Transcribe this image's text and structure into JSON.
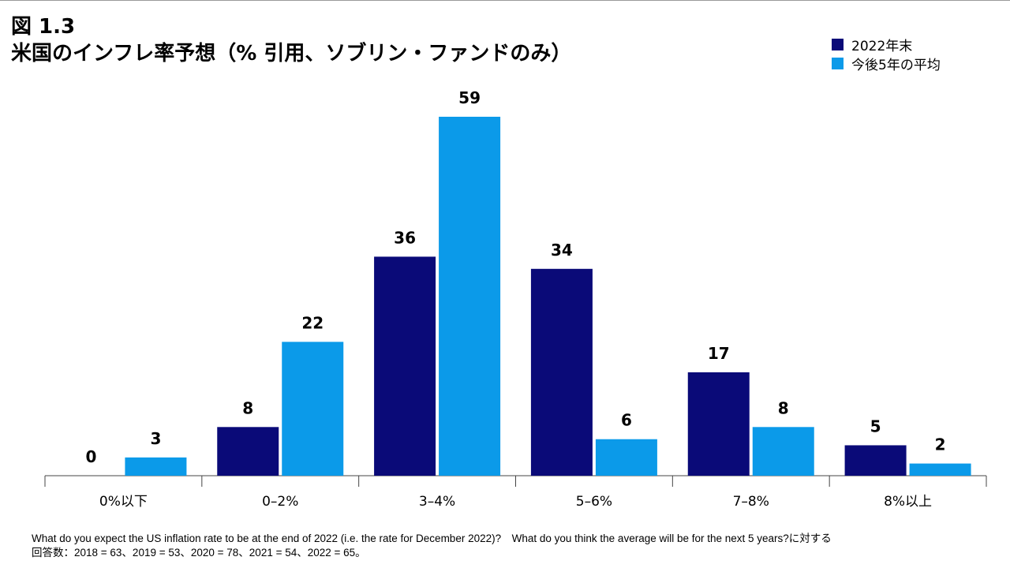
{
  "figure": {
    "number": "図 1.3",
    "title": "米国のインフレ率予想（% 引用、ソブリン・ファンドのみ）"
  },
  "legend": [
    {
      "label": "2022年末",
      "color": "#0a0a78"
    },
    {
      "label": "今後5年の平均",
      "color": "#0b9ae9"
    }
  ],
  "chart_data": {
    "type": "bar",
    "title": "米国のインフレ率予想（% 引用、ソブリン・ファンドのみ）",
    "categories": [
      "0%以下",
      "0–2%",
      "3–4%",
      "5–6%",
      "7–8%",
      "8%以上"
    ],
    "series": [
      {
        "name": "2022年末",
        "color": "#0a0a78",
        "values": [
          0,
          8,
          36,
          34,
          17,
          5
        ]
      },
      {
        "name": "今後5年の平均",
        "color": "#0b9ae9",
        "values": [
          3,
          22,
          59,
          6,
          8,
          2
        ]
      }
    ],
    "ylim": [
      0,
      59
    ],
    "grid": false,
    "legend_position": "top-right",
    "data_labels": true
  },
  "footnote": {
    "line1": "What do you expect the US inflation rate to be at the end of 2022 (i.e. the rate for December 2022)?　What do you think the average will be for the next 5 years?に対する",
    "line2": "回答数：2018 = 63、2019 = 53、2020 = 78、2021 = 54、2022 = 65。"
  }
}
